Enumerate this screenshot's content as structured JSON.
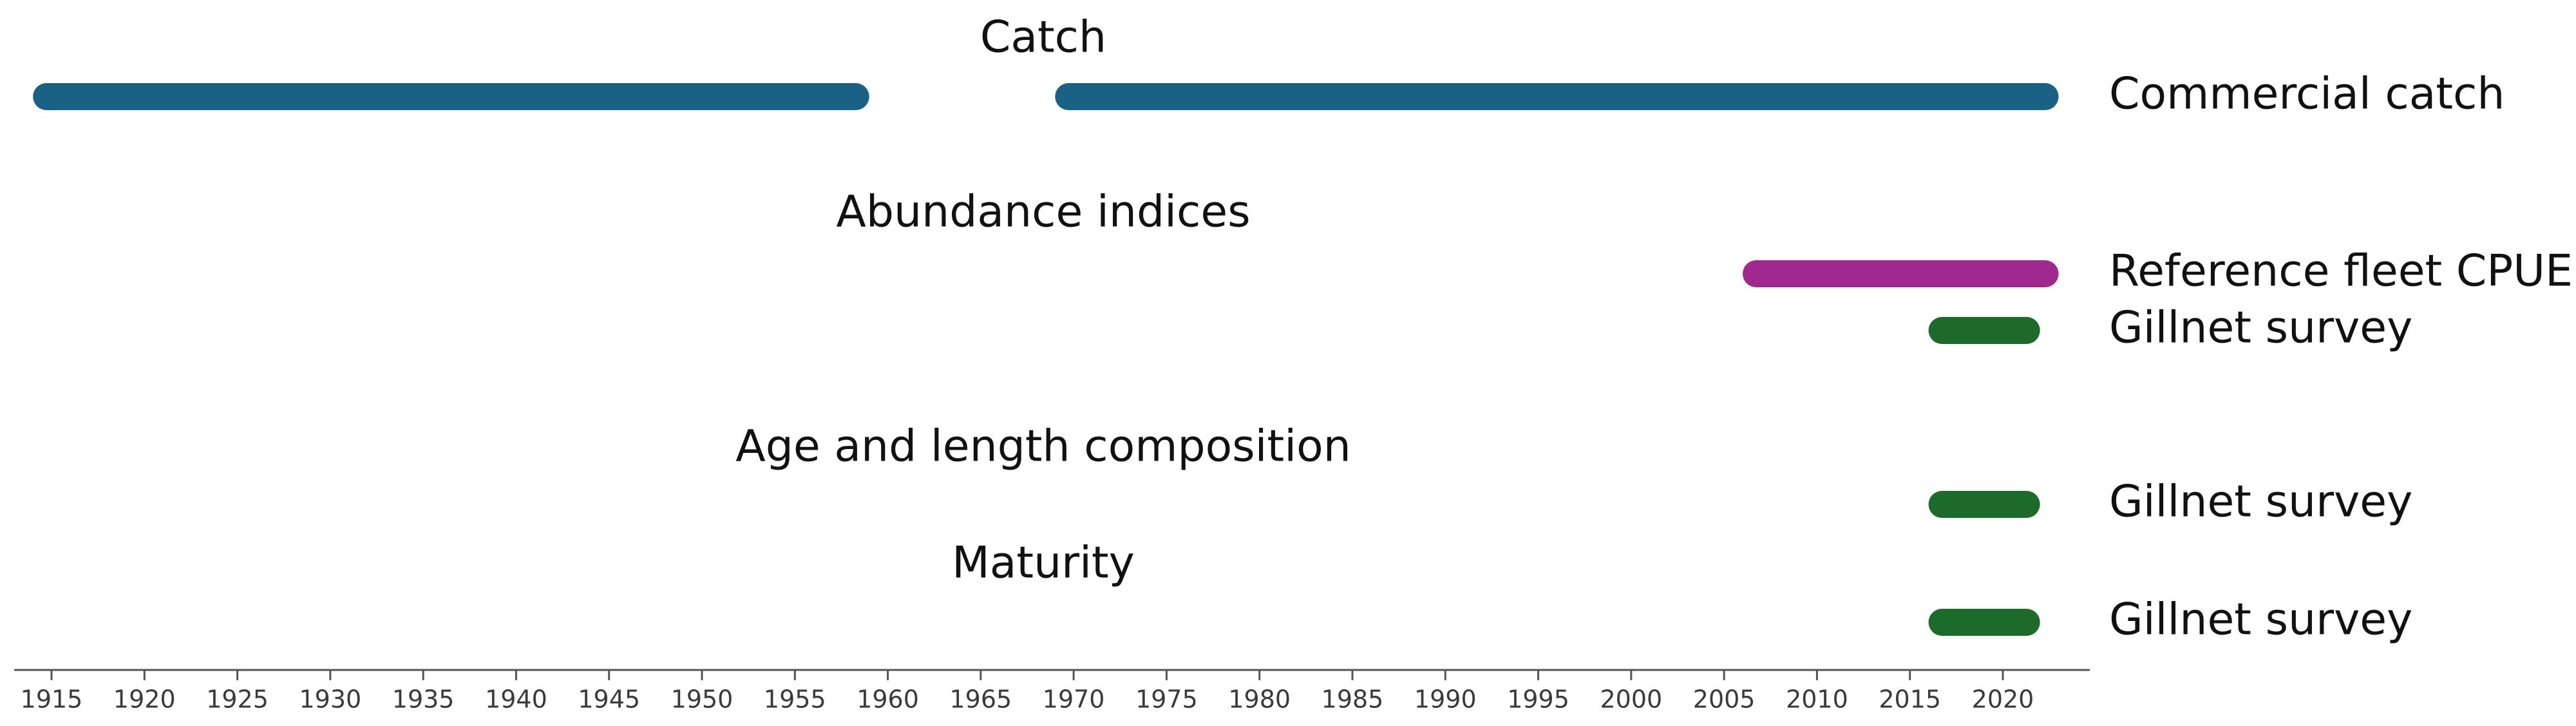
{
  "chart_data": {
    "type": "timeline",
    "title": "",
    "xlabel": "",
    "ylabel": "",
    "xlim": [
      1913,
      2025
    ],
    "x_ticks": [
      1915,
      1920,
      1925,
      1930,
      1935,
      1940,
      1945,
      1950,
      1955,
      1960,
      1965,
      1970,
      1975,
      1980,
      1985,
      1990,
      1995,
      2000,
      2005,
      2010,
      2015,
      2020
    ],
    "grid": false,
    "legend": "none",
    "sections": [
      {
        "title": "Catch",
        "rows": [
          {
            "label": "Commercial catch",
            "color": "#1a6285",
            "intervals": [
              [
                1914,
                1959
              ],
              [
                1969,
                2023
              ]
            ]
          }
        ]
      },
      {
        "title": "Abundance indices",
        "rows": [
          {
            "label": "Reference fleet CPUE",
            "color": "#a0298f",
            "intervals": [
              [
                2006,
                2023
              ]
            ]
          },
          {
            "label": "Gillnet survey",
            "color": "#1c6b2a",
            "intervals": [
              [
                2016,
                2022
              ]
            ]
          }
        ]
      },
      {
        "title": "Age and length composition",
        "rows": [
          {
            "label": "Gillnet survey",
            "color": "#1c6b2a",
            "intervals": [
              [
                2016,
                2022
              ]
            ]
          }
        ]
      },
      {
        "title": "Maturity",
        "rows": [
          {
            "label": "Gillnet survey",
            "color": "#1c6b2a",
            "intervals": [
              [
                2016,
                2022
              ]
            ]
          }
        ]
      }
    ]
  }
}
